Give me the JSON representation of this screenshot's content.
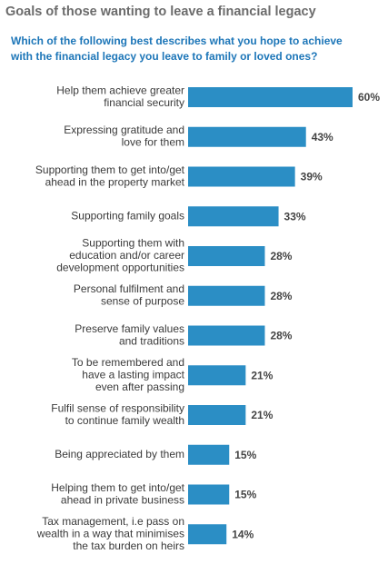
{
  "chart_data": {
    "type": "bar",
    "orientation": "horizontal",
    "title": "Goals of those wanting to leave a financial legacy",
    "subtitle": "Which of the following best describes what you hope to achieve\nwith the financial legacy you leave to family or loved ones?",
    "categories": [
      "Help them achieve greater\nfinancial security",
      "Expressing gratitude and\nlove for them",
      "Supporting them to get into/get\nahead in the property market",
      "Supporting family goals",
      "Supporting them with\neducation and/or career\ndevelopment opportunities",
      "Personal fulfilment and\nsense of purpose",
      "Preserve family values\nand traditions",
      "To be remembered and\nhave a lasting impact\neven after passing",
      "Fulfil sense of responsibility\nto continue family wealth",
      "Being appreciated by them",
      "Helping them to get into/get\nahead in private business",
      "Tax management, i.e pass on\nwealth in a way that minimises\nthe tax burden on heirs"
    ],
    "values": [
      60,
      43,
      39,
      33,
      28,
      28,
      28,
      21,
      21,
      15,
      15,
      14
    ],
    "value_labels": [
      "60%",
      "43%",
      "39%",
      "33%",
      "28%",
      "28%",
      "28%",
      "21%",
      "21%",
      "15%",
      "15%",
      "14%"
    ],
    "color": "#2b8ec5"
  }
}
